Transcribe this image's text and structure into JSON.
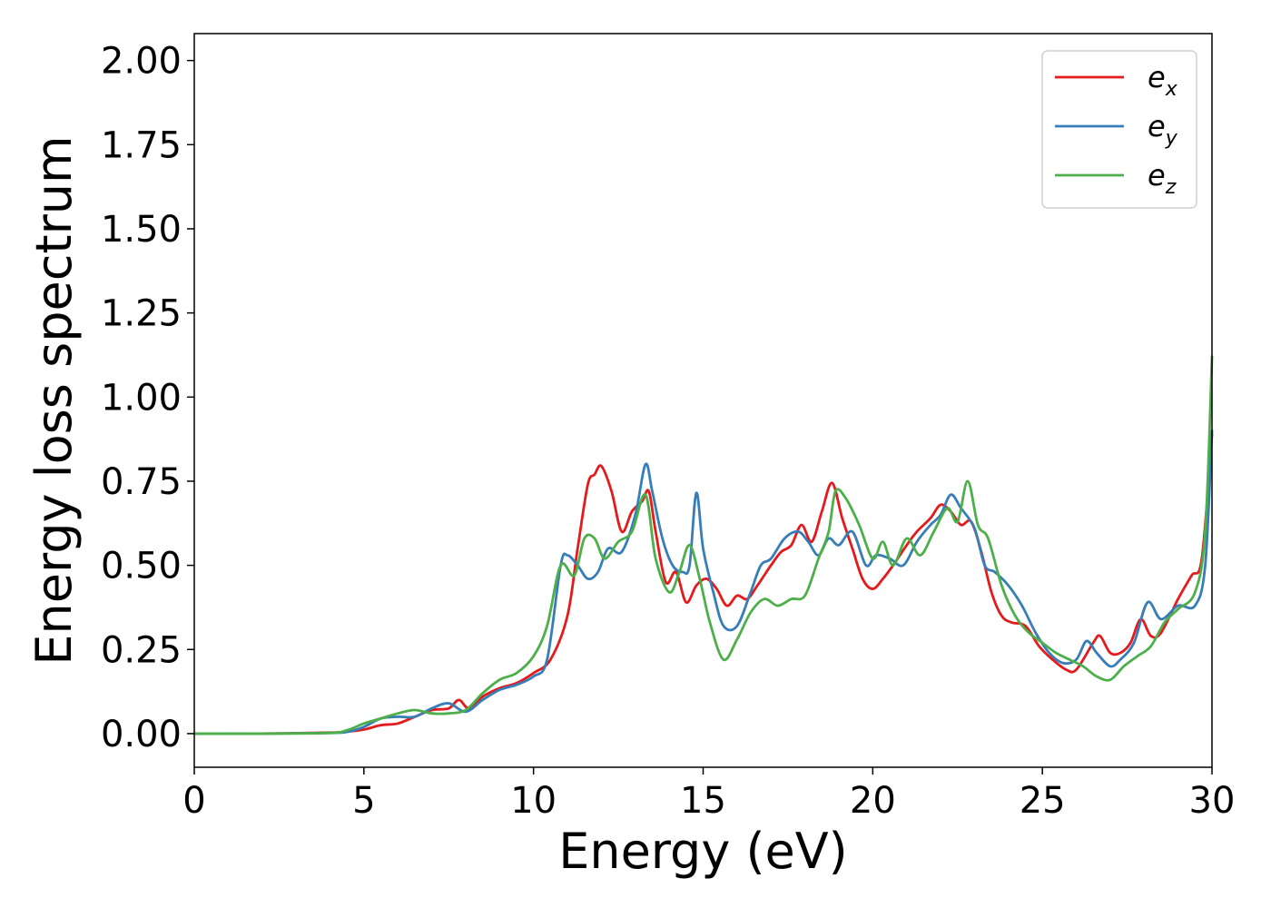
{
  "chart_data": {
    "type": "line",
    "title": "",
    "xlabel": "Energy (eV)",
    "ylabel": "Energy loss spectrum",
    "xlim": [
      0,
      30
    ],
    "ylim": [
      -0.1,
      2.08
    ],
    "xticks": [
      0,
      5,
      10,
      15,
      20,
      25,
      30
    ],
    "yticks": [
      0.0,
      0.25,
      0.5,
      0.75,
      1.0,
      1.25,
      1.5,
      1.75,
      2.0
    ],
    "xtick_labels": [
      "0",
      "5",
      "10",
      "15",
      "20",
      "25",
      "30"
    ],
    "ytick_labels": [
      "0.00",
      "0.25",
      "0.50",
      "0.75",
      "1.00",
      "1.25",
      "1.50",
      "1.75",
      "2.00"
    ],
    "grid": false,
    "legend": {
      "position": "top-right"
    },
    "series": [
      {
        "name": "e",
        "subscript": "x",
        "color": "#e41a1c",
        "points": [
          [
            0,
            0
          ],
          [
            2,
            0
          ],
          [
            4,
            0.003
          ],
          [
            4.5,
            0.006
          ],
          [
            5,
            0.012
          ],
          [
            5.5,
            0.025
          ],
          [
            6,
            0.03
          ],
          [
            6.5,
            0.05
          ],
          [
            7,
            0.07
          ],
          [
            7.5,
            0.075
          ],
          [
            7.8,
            0.1
          ],
          [
            8.1,
            0.075
          ],
          [
            8.5,
            0.11
          ],
          [
            9,
            0.135
          ],
          [
            9.5,
            0.15
          ],
          [
            10,
            0.18
          ],
          [
            10.5,
            0.22
          ],
          [
            11,
            0.35
          ],
          [
            11.3,
            0.55
          ],
          [
            11.6,
            0.74
          ],
          [
            11.8,
            0.77
          ],
          [
            12,
            0.795
          ],
          [
            12.3,
            0.72
          ],
          [
            12.6,
            0.6
          ],
          [
            12.9,
            0.66
          ],
          [
            13.2,
            0.69
          ],
          [
            13.4,
            0.72
          ],
          [
            13.6,
            0.6
          ],
          [
            13.9,
            0.45
          ],
          [
            14.2,
            0.48
          ],
          [
            14.5,
            0.39
          ],
          [
            14.8,
            0.44
          ],
          [
            15.1,
            0.46
          ],
          [
            15.4,
            0.43
          ],
          [
            15.7,
            0.38
          ],
          [
            16,
            0.41
          ],
          [
            16.3,
            0.4
          ],
          [
            16.6,
            0.44
          ],
          [
            17,
            0.5
          ],
          [
            17.3,
            0.54
          ],
          [
            17.6,
            0.56
          ],
          [
            17.9,
            0.62
          ],
          [
            18.2,
            0.57
          ],
          [
            18.5,
            0.66
          ],
          [
            18.8,
            0.745
          ],
          [
            19.1,
            0.64
          ],
          [
            19.4,
            0.55
          ],
          [
            19.7,
            0.46
          ],
          [
            20,
            0.43
          ],
          [
            20.3,
            0.46
          ],
          [
            20.6,
            0.5
          ],
          [
            21,
            0.56
          ],
          [
            21.3,
            0.6
          ],
          [
            21.7,
            0.64
          ],
          [
            22,
            0.68
          ],
          [
            22.3,
            0.66
          ],
          [
            22.6,
            0.62
          ],
          [
            22.9,
            0.63
          ],
          [
            23.2,
            0.54
          ],
          [
            23.5,
            0.42
          ],
          [
            23.8,
            0.35
          ],
          [
            24.1,
            0.33
          ],
          [
            24.5,
            0.32
          ],
          [
            24.9,
            0.26
          ],
          [
            25.3,
            0.22
          ],
          [
            25.7,
            0.19
          ],
          [
            26,
            0.19
          ],
          [
            26.5,
            0.27
          ],
          [
            26.7,
            0.29
          ],
          [
            27,
            0.24
          ],
          [
            27.3,
            0.24
          ],
          [
            27.6,
            0.27
          ],
          [
            27.9,
            0.34
          ],
          [
            28.2,
            0.29
          ],
          [
            28.5,
            0.3
          ],
          [
            29,
            0.4
          ],
          [
            29.4,
            0.47
          ],
          [
            29.7,
            0.52
          ],
          [
            30,
            0.89
          ]
        ]
      },
      {
        "name": "e",
        "subscript": "y",
        "color": "#377eb8",
        "points": [
          [
            0,
            0
          ],
          [
            2,
            0
          ],
          [
            4,
            0.002
          ],
          [
            4.5,
            0.005
          ],
          [
            5,
            0.02
          ],
          [
            5.5,
            0.045
          ],
          [
            6,
            0.05
          ],
          [
            6.5,
            0.05
          ],
          [
            7,
            0.075
          ],
          [
            7.5,
            0.09
          ],
          [
            8,
            0.065
          ],
          [
            8.5,
            0.1
          ],
          [
            9,
            0.13
          ],
          [
            9.5,
            0.145
          ],
          [
            10,
            0.17
          ],
          [
            10.4,
            0.22
          ],
          [
            10.8,
            0.5
          ],
          [
            11,
            0.53
          ],
          [
            11.3,
            0.5
          ],
          [
            11.6,
            0.46
          ],
          [
            11.9,
            0.48
          ],
          [
            12.2,
            0.55
          ],
          [
            12.6,
            0.54
          ],
          [
            13,
            0.65
          ],
          [
            13.3,
            0.8
          ],
          [
            13.5,
            0.72
          ],
          [
            13.8,
            0.58
          ],
          [
            14.1,
            0.5
          ],
          [
            14.4,
            0.48
          ],
          [
            14.6,
            0.5
          ],
          [
            14.8,
            0.715
          ],
          [
            15,
            0.55
          ],
          [
            15.3,
            0.42
          ],
          [
            15.6,
            0.32
          ],
          [
            16,
            0.32
          ],
          [
            16.4,
            0.42
          ],
          [
            16.7,
            0.5
          ],
          [
            17,
            0.52
          ],
          [
            17.4,
            0.58
          ],
          [
            17.8,
            0.6
          ],
          [
            18.1,
            0.57
          ],
          [
            18.4,
            0.53
          ],
          [
            18.7,
            0.58
          ],
          [
            19,
            0.56
          ],
          [
            19.4,
            0.6
          ],
          [
            19.8,
            0.5
          ],
          [
            20.1,
            0.53
          ],
          [
            20.5,
            0.52
          ],
          [
            20.9,
            0.5
          ],
          [
            21.3,
            0.57
          ],
          [
            21.7,
            0.62
          ],
          [
            22,
            0.65
          ],
          [
            22.3,
            0.71
          ],
          [
            22.6,
            0.67
          ],
          [
            23,
            0.61
          ],
          [
            23.3,
            0.5
          ],
          [
            23.6,
            0.48
          ],
          [
            24,
            0.44
          ],
          [
            24.4,
            0.38
          ],
          [
            24.8,
            0.3
          ],
          [
            25.2,
            0.24
          ],
          [
            25.6,
            0.21
          ],
          [
            26,
            0.22
          ],
          [
            26.3,
            0.275
          ],
          [
            26.6,
            0.24
          ],
          [
            27,
            0.2
          ],
          [
            27.3,
            0.22
          ],
          [
            27.7,
            0.27
          ],
          [
            28.1,
            0.39
          ],
          [
            28.5,
            0.34
          ],
          [
            29,
            0.38
          ],
          [
            29.5,
            0.38
          ],
          [
            29.8,
            0.5
          ],
          [
            30,
            0.9
          ]
        ]
      },
      {
        "name": "e",
        "subscript": "z",
        "color": "#4daf4a",
        "points": [
          [
            0,
            0
          ],
          [
            2,
            0
          ],
          [
            4,
            0.002
          ],
          [
            4.5,
            0.01
          ],
          [
            5,
            0.03
          ],
          [
            5.5,
            0.045
          ],
          [
            6,
            0.06
          ],
          [
            6.5,
            0.07
          ],
          [
            7,
            0.06
          ],
          [
            7.5,
            0.06
          ],
          [
            8,
            0.07
          ],
          [
            8.5,
            0.12
          ],
          [
            9,
            0.16
          ],
          [
            9.5,
            0.18
          ],
          [
            10,
            0.23
          ],
          [
            10.4,
            0.32
          ],
          [
            10.8,
            0.5
          ],
          [
            11.2,
            0.47
          ],
          [
            11.5,
            0.58
          ],
          [
            11.8,
            0.58
          ],
          [
            12.1,
            0.52
          ],
          [
            12.5,
            0.57
          ],
          [
            12.9,
            0.6
          ],
          [
            13.3,
            0.71
          ],
          [
            13.6,
            0.52
          ],
          [
            14,
            0.42
          ],
          [
            14.3,
            0.48
          ],
          [
            14.6,
            0.56
          ],
          [
            14.9,
            0.46
          ],
          [
            15.2,
            0.33
          ],
          [
            15.6,
            0.22
          ],
          [
            16,
            0.28
          ],
          [
            16.4,
            0.36
          ],
          [
            16.8,
            0.4
          ],
          [
            17.2,
            0.38
          ],
          [
            17.6,
            0.4
          ],
          [
            18,
            0.41
          ],
          [
            18.4,
            0.52
          ],
          [
            18.7,
            0.6
          ],
          [
            18.9,
            0.72
          ],
          [
            19.2,
            0.7
          ],
          [
            19.6,
            0.62
          ],
          [
            20,
            0.52
          ],
          [
            20.3,
            0.57
          ],
          [
            20.6,
            0.5
          ],
          [
            21,
            0.58
          ],
          [
            21.4,
            0.53
          ],
          [
            21.8,
            0.6
          ],
          [
            22.2,
            0.67
          ],
          [
            22.5,
            0.63
          ],
          [
            22.8,
            0.75
          ],
          [
            23.1,
            0.62
          ],
          [
            23.4,
            0.58
          ],
          [
            23.8,
            0.44
          ],
          [
            24.2,
            0.35
          ],
          [
            24.6,
            0.3
          ],
          [
            25,
            0.27
          ],
          [
            25.4,
            0.24
          ],
          [
            25.8,
            0.22
          ],
          [
            26.2,
            0.2
          ],
          [
            26.6,
            0.17
          ],
          [
            27,
            0.16
          ],
          [
            27.4,
            0.2
          ],
          [
            27.8,
            0.23
          ],
          [
            28.2,
            0.26
          ],
          [
            28.6,
            0.33
          ],
          [
            29,
            0.37
          ],
          [
            29.5,
            0.42
          ],
          [
            29.8,
            0.6
          ],
          [
            30,
            1.12
          ]
        ]
      }
    ]
  }
}
